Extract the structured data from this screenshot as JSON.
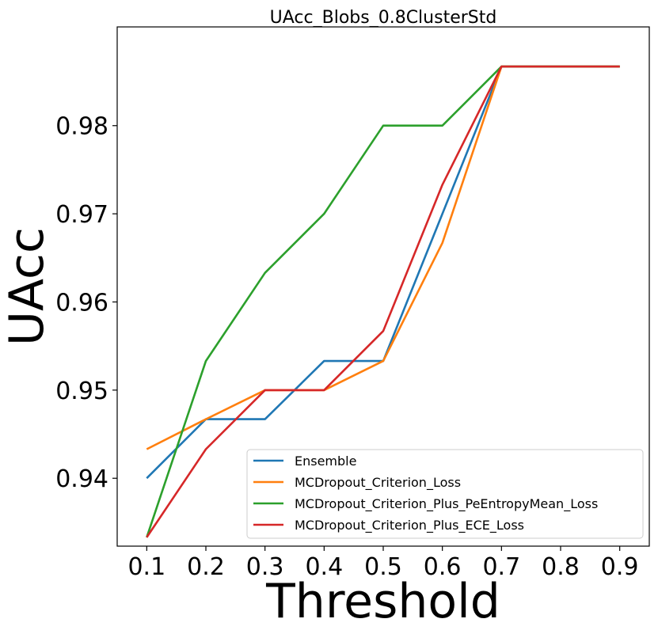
{
  "chart_data": {
    "type": "line",
    "title": "UAcc_Blobs_0.8ClusterStd",
    "xlabel": "Threshold",
    "ylabel": "UAcc",
    "x": [
      0.1,
      0.2,
      0.3,
      0.4,
      0.5,
      0.6,
      0.7,
      0.8,
      0.9
    ],
    "xticks": [
      "0.1",
      "0.2",
      "0.3",
      "0.4",
      "0.5",
      "0.6",
      "0.7",
      "0.8",
      "0.9"
    ],
    "yticks": [
      "0.94",
      "0.95",
      "0.96",
      "0.97",
      "0.98"
    ],
    "ytick_values": [
      0.94,
      0.95,
      0.96,
      0.97,
      0.98
    ],
    "xlim": [
      0.05,
      0.95
    ],
    "ylim": [
      0.9323,
      0.9912
    ],
    "grid": false,
    "legend_position": "lower-right",
    "series": [
      {
        "name": "Ensemble",
        "color": "#1f77b4",
        "values": [
          0.94,
          0.9467,
          0.9467,
          0.9533,
          0.9533,
          0.97,
          0.9867,
          0.9867,
          0.9867
        ]
      },
      {
        "name": "MCDropout_Criterion_Loss",
        "color": "#ff7f0e",
        "values": [
          0.9433,
          0.9467,
          0.95,
          0.95,
          0.9533,
          0.9667,
          0.9867,
          0.9867,
          0.9867
        ]
      },
      {
        "name": "MCDropout_Criterion_Plus_PeEntropyMean_Loss",
        "color": "#2ca02c",
        "values": [
          0.9333,
          0.9533,
          0.9633,
          0.97,
          0.98,
          0.98,
          0.9867,
          0.9867,
          0.9867
        ]
      },
      {
        "name": "MCDropout_Criterion_Plus_ECE_Loss",
        "color": "#d62728",
        "values": [
          0.9333,
          0.9433,
          0.95,
          0.95,
          0.9567,
          0.9733,
          0.9867,
          0.9867,
          0.9867
        ]
      }
    ]
  }
}
